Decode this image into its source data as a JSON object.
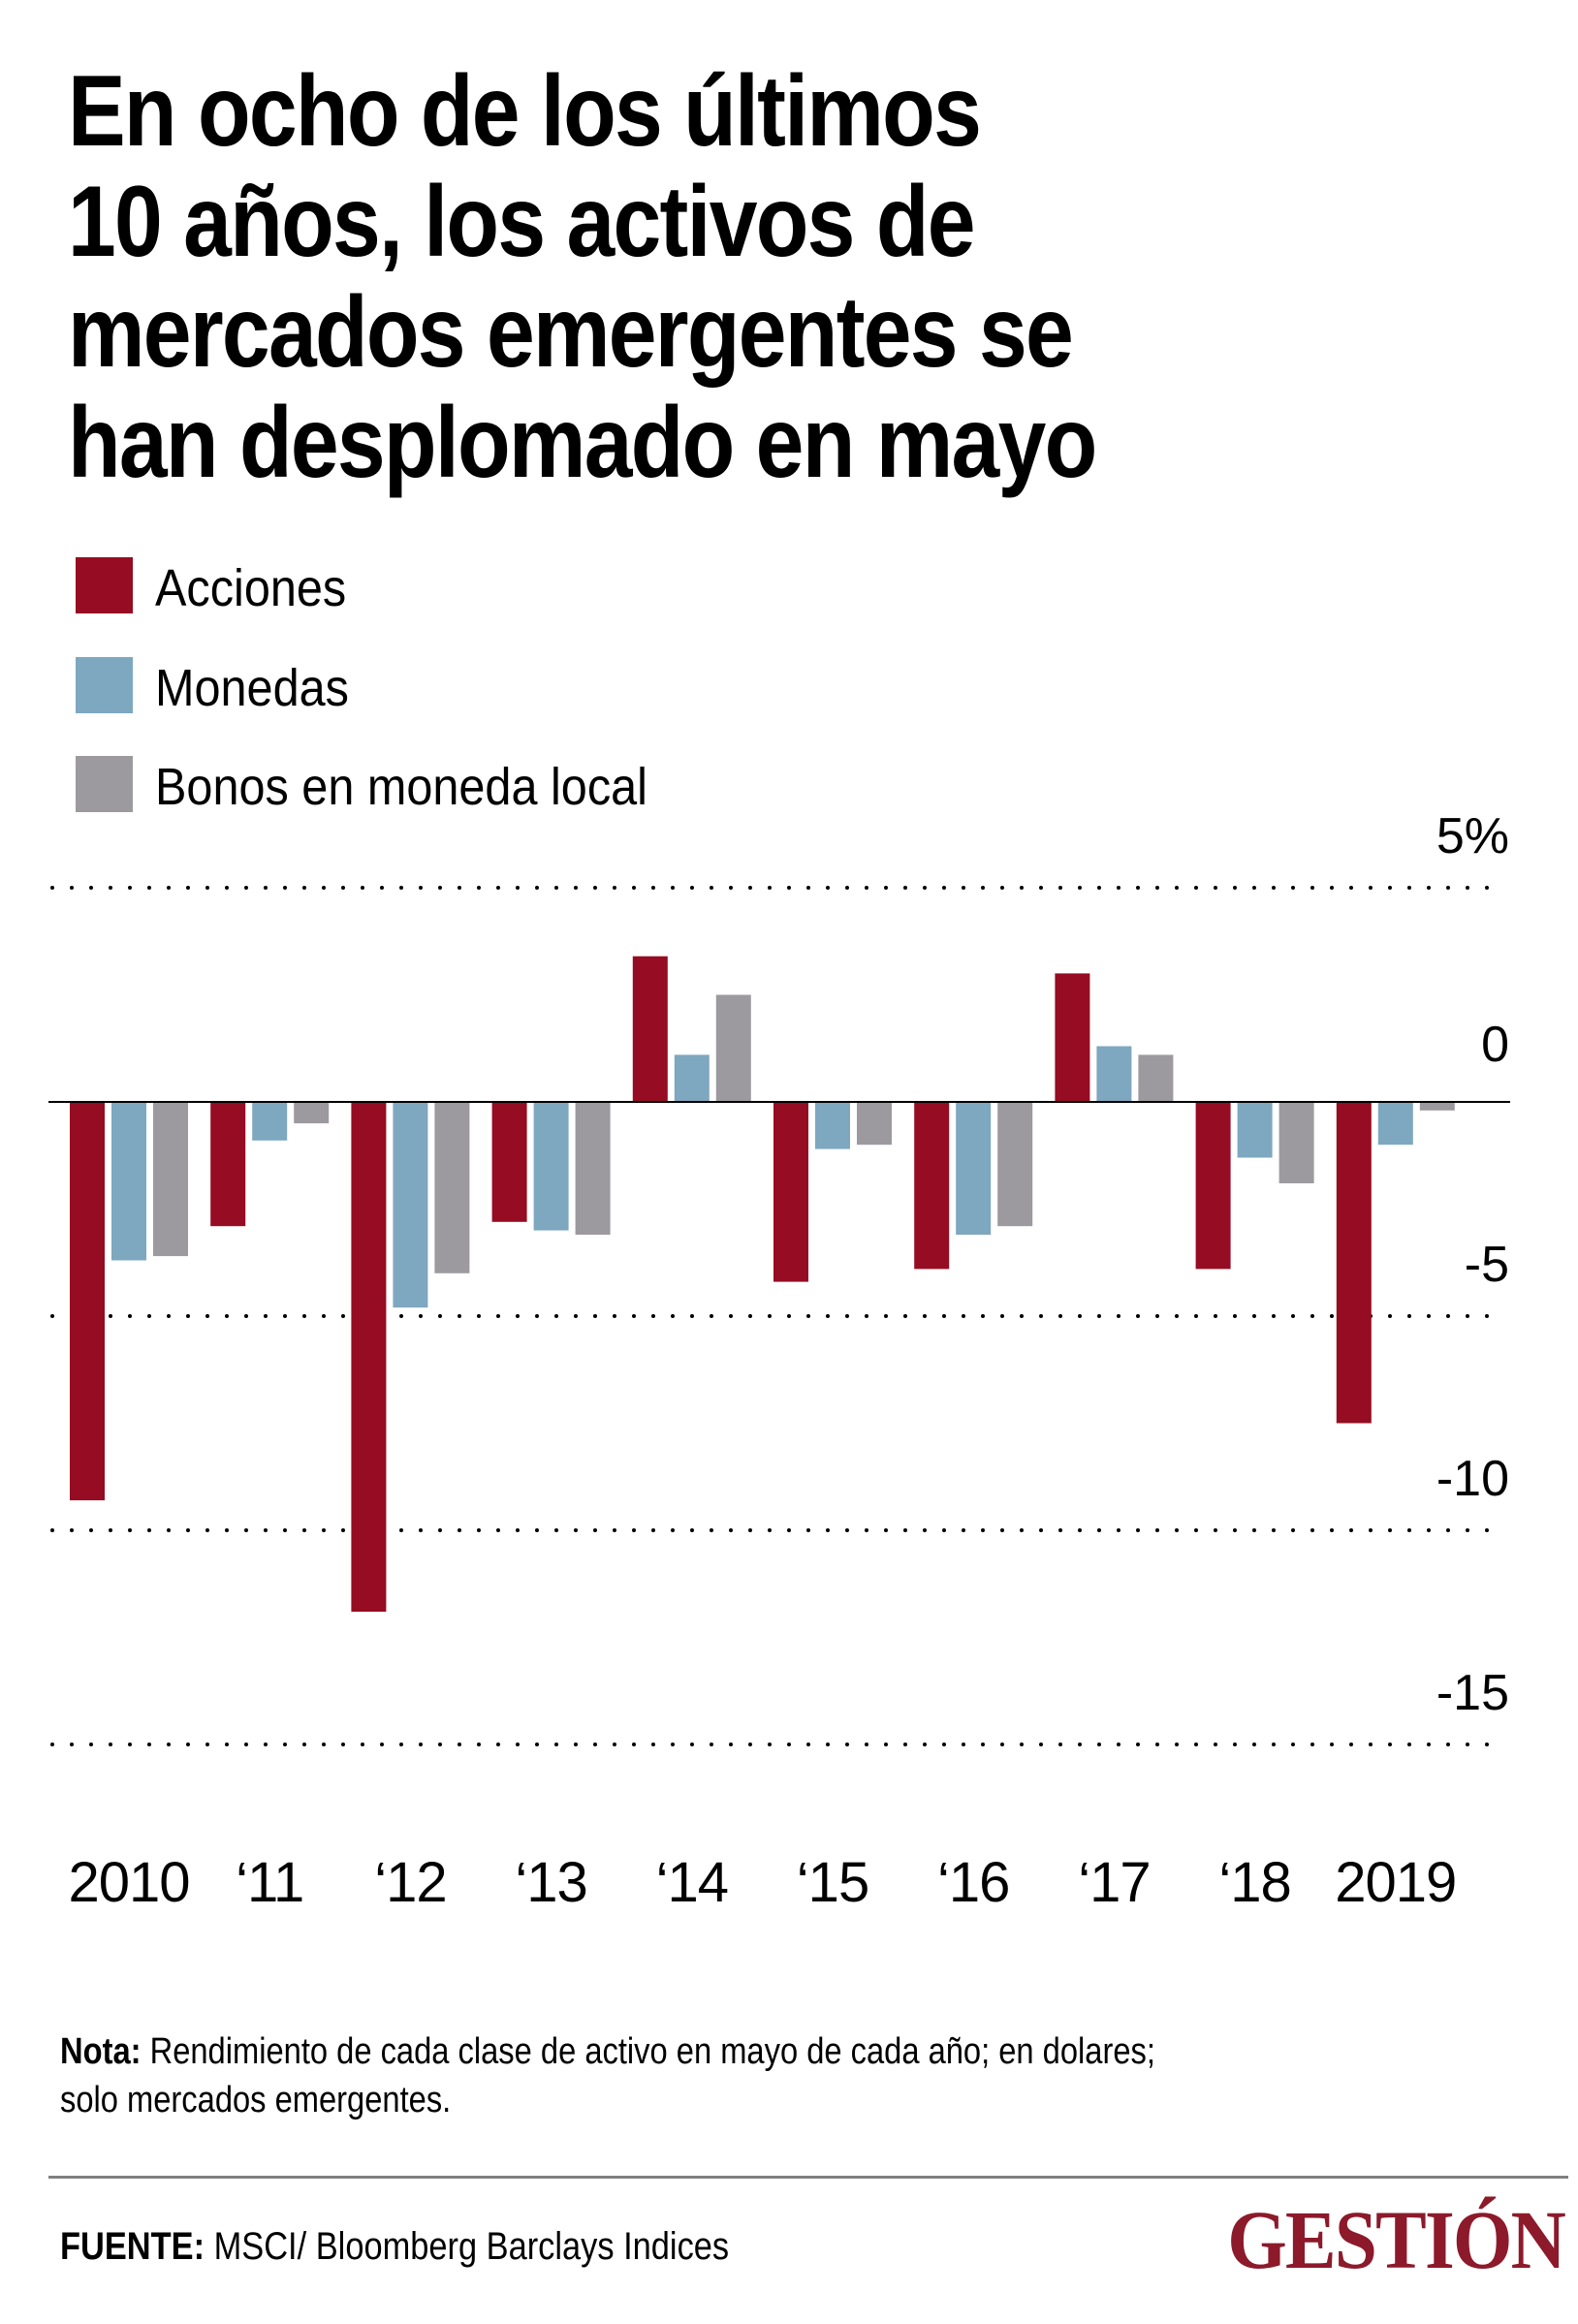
{
  "title_lines": [
    "En ocho de los últimos",
    "10 años, los activos de",
    "mercados emergentes se",
    "han desplomado en mayo"
  ],
  "legend": [
    {
      "label": "Acciones",
      "color": "#960c22"
    },
    {
      "label": "Monedas",
      "color": "#7ea7c0"
    },
    {
      "label": "Bonos en moneda local",
      "color": "#9c9a9f"
    }
  ],
  "chart_data": {
    "type": "bar",
    "title": "En ocho de los últimos 10 años, los activos de mercados emergentes se han desplomado en mayo",
    "xlabel": "",
    "ylabel": "",
    "categories": [
      "2010",
      "‘11",
      "‘12",
      "‘13",
      "‘14",
      "‘15",
      "‘16",
      "‘17",
      "‘18",
      "2019"
    ],
    "series": [
      {
        "name": "Acciones",
        "color": "#960c22",
        "values": [
          -9.3,
          -2.9,
          -11.9,
          -2.8,
          3.4,
          -4.2,
          -3.9,
          3.0,
          -3.9,
          -7.5
        ]
      },
      {
        "name": "Monedas",
        "color": "#7ea7c0",
        "values": [
          -3.7,
          -0.9,
          -4.8,
          -3.0,
          1.1,
          -1.1,
          -3.1,
          1.3,
          -1.3,
          -1.0
        ]
      },
      {
        "name": "Bonos en moneda local",
        "color": "#9c9a9f",
        "values": [
          -3.6,
          -0.5,
          -4.0,
          -3.1,
          2.5,
          -1.0,
          -2.9,
          1.1,
          -1.9,
          -0.2
        ]
      }
    ],
    "yticks": [
      5,
      0,
      -5,
      -10,
      -15
    ],
    "ytick_labels": [
      "5%",
      "0",
      "-5",
      "-10",
      "-15"
    ],
    "ylim": [
      -15,
      5
    ],
    "grid": "dotted horizontal",
    "legend_position": "top-left",
    "unit": "%"
  },
  "note": {
    "label": "Nota:",
    "line1": " Rendimiento de cada clase de activo en mayo de cada año; en dolares;",
    "line2": "solo mercados emergentes."
  },
  "source": {
    "label": "FUENTE:",
    "text": " MSCI/ Bloomberg Barclays Indices"
  },
  "logo": {
    "text": "GESTIÓN",
    "color": "#8c1a2b"
  }
}
